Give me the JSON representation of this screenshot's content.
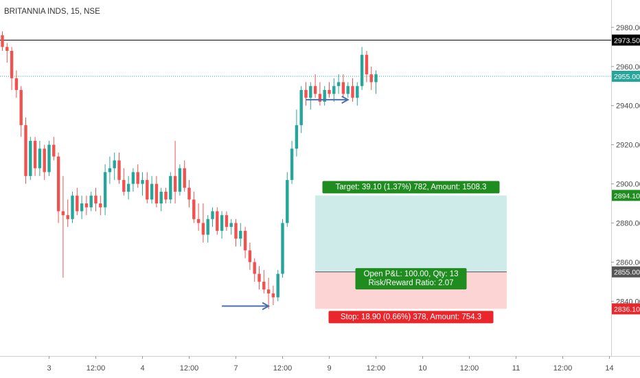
{
  "header": {
    "title": "BRITANNIA INDS, 15, NSE"
  },
  "chart_data": {
    "type": "candlestick",
    "symbol": "BRITANNIA INDS",
    "interval": "15",
    "exchange": "NSE",
    "ylim": [
      2812,
      2994
    ],
    "y_ticks": [
      2980,
      2960,
      2940,
      2920,
      2900,
      2880,
      2860,
      2840
    ],
    "y_tick_labels": [
      "2980.00",
      "2960.00",
      "2940.00",
      "2920.00",
      "2900.00",
      "2880.00",
      "2860.00",
      "2840.00"
    ],
    "x_ticks": [
      {
        "bar": 10,
        "label": "3"
      },
      {
        "bar": 20,
        "label": "12:00"
      },
      {
        "bar": 30,
        "label": "4"
      },
      {
        "bar": 40,
        "label": "12:00"
      },
      {
        "bar": 50,
        "label": "7"
      },
      {
        "bar": 60,
        "label": "12:00"
      },
      {
        "bar": 70,
        "label": "9"
      },
      {
        "bar": 80,
        "label": "12:00"
      },
      {
        "bar": 90,
        "label": "10"
      },
      {
        "bar": 100,
        "label": "12:00"
      },
      {
        "bar": 110,
        "label": "11"
      },
      {
        "bar": 120,
        "label": "12:00"
      },
      {
        "bar": 130,
        "label": "14"
      }
    ],
    "colors": {
      "up": "#26a69a",
      "down": "#ef5350",
      "line": "#4b6eaf"
    },
    "candles": [
      [
        2976,
        2978,
        2968,
        2970
      ],
      [
        2970,
        2972,
        2962,
        2968
      ],
      [
        2968,
        2970,
        2948,
        2954
      ],
      [
        2954,
        2958,
        2944,
        2948
      ],
      [
        2948,
        2950,
        2924,
        2930
      ],
      [
        2930,
        2934,
        2900,
        2904
      ],
      [
        2904,
        2924,
        2902,
        2922
      ],
      [
        2922,
        2924,
        2904,
        2908
      ],
      [
        2908,
        2922,
        2904,
        2918
      ],
      [
        2918,
        2920,
        2902,
        2906
      ],
      [
        2906,
        2922,
        2904,
        2920
      ],
      [
        2920,
        2924,
        2912,
        2914
      ],
      [
        2914,
        2916,
        2880,
        2886
      ],
      [
        2886,
        2904,
        2852,
        2884
      ],
      [
        2884,
        2892,
        2878,
        2882
      ],
      [
        2882,
        2896,
        2880,
        2894
      ],
      [
        2894,
        2898,
        2884,
        2886
      ],
      [
        2886,
        2894,
        2882,
        2890
      ],
      [
        2890,
        2894,
        2884,
        2888
      ],
      [
        2888,
        2896,
        2886,
        2894
      ],
      [
        2894,
        2898,
        2886,
        2890
      ],
      [
        2890,
        2894,
        2884,
        2888
      ],
      [
        2888,
        2910,
        2884,
        2906
      ],
      [
        2906,
        2914,
        2900,
        2908
      ],
      [
        2908,
        2916,
        2902,
        2912
      ],
      [
        2912,
        2916,
        2900,
        2902
      ],
      [
        2902,
        2908,
        2894,
        2896
      ],
      [
        2896,
        2904,
        2892,
        2900
      ],
      [
        2900,
        2908,
        2896,
        2906
      ],
      [
        2906,
        2910,
        2898,
        2900
      ],
      [
        2900,
        2906,
        2894,
        2902
      ],
      [
        2902,
        2906,
        2890,
        2892
      ],
      [
        2892,
        2904,
        2890,
        2900
      ],
      [
        2900,
        2904,
        2888,
        2890
      ],
      [
        2890,
        2898,
        2886,
        2896
      ],
      [
        2896,
        2898,
        2890,
        2892
      ],
      [
        2892,
        2906,
        2890,
        2904
      ],
      [
        2904,
        2922,
        2890,
        2896
      ],
      [
        2896,
        2910,
        2894,
        2908
      ],
      [
        2908,
        2912,
        2896,
        2898
      ],
      [
        2898,
        2902,
        2888,
        2892
      ],
      [
        2892,
        2896,
        2880,
        2882
      ],
      [
        2882,
        2890,
        2876,
        2880
      ],
      [
        2880,
        2890,
        2870,
        2874
      ],
      [
        2874,
        2884,
        2870,
        2882
      ],
      [
        2882,
        2888,
        2878,
        2886
      ],
      [
        2886,
        2888,
        2874,
        2876
      ],
      [
        2876,
        2886,
        2872,
        2884
      ],
      [
        2884,
        2886,
        2876,
        2878
      ],
      [
        2878,
        2882,
        2874,
        2880
      ],
      [
        2880,
        2882,
        2868,
        2872
      ],
      [
        2872,
        2880,
        2868,
        2876
      ],
      [
        2876,
        2878,
        2862,
        2866
      ],
      [
        2866,
        2870,
        2856,
        2860
      ],
      [
        2860,
        2862,
        2850,
        2854
      ],
      [
        2854,
        2858,
        2846,
        2850
      ],
      [
        2850,
        2856,
        2844,
        2846
      ],
      [
        2846,
        2852,
        2836,
        2844
      ],
      [
        2844,
        2848,
        2838,
        2842
      ],
      [
        2842,
        2856,
        2840,
        2854
      ],
      [
        2854,
        2882,
        2852,
        2880
      ],
      [
        2880,
        2906,
        2878,
        2902
      ],
      [
        2902,
        2922,
        2900,
        2918
      ],
      [
        2918,
        2938,
        2914,
        2930
      ],
      [
        2930,
        2950,
        2926,
        2948
      ],
      [
        2948,
        2952,
        2940,
        2944
      ],
      [
        2944,
        2952,
        2938,
        2950
      ],
      [
        2950,
        2956,
        2944,
        2946
      ],
      [
        2946,
        2952,
        2940,
        2942
      ],
      [
        2942,
        2950,
        2940,
        2948
      ],
      [
        2948,
        2952,
        2944,
        2946
      ],
      [
        2946,
        2954,
        2942,
        2950
      ],
      [
        2950,
        2956,
        2946,
        2952
      ],
      [
        2952,
        2956,
        2944,
        2946
      ],
      [
        2946,
        2952,
        2944,
        2950
      ],
      [
        2950,
        2954,
        2942,
        2944
      ],
      [
        2944,
        2952,
        2940,
        2950
      ],
      [
        2950,
        2970,
        2948,
        2966
      ],
      [
        2966,
        2968,
        2952,
        2956
      ],
      [
        2956,
        2960,
        2948,
        2952
      ],
      [
        2952,
        2958,
        2946,
        2956
      ]
    ],
    "horizontal_lines": [
      {
        "price": 2973.5,
        "label": "2973.50",
        "color": "#000000",
        "style": "solid"
      },
      {
        "price": 2955.0,
        "label": "2955.00",
        "color": "#26a69a",
        "style": "dotted"
      }
    ],
    "annotations": {
      "arrow_top": {
        "price": 2943,
        "from_bar": 65,
        "to_bar": 74
      },
      "arrow_bottom": {
        "price": 2837.5,
        "from_bar": 47,
        "to_bar": 57
      }
    },
    "long_position": {
      "from_bar": 67,
      "to_bar": 108,
      "entry": 2855.0,
      "target": 2894.1,
      "stop": 2836.1,
      "entry_label": "2855.00",
      "target_label": "2894.10",
      "stop_label": "2836.10",
      "target_text": "Target: 39.10 (1.37%) 782, Amount: 1508.3",
      "stop_text": "Stop: 18.90 (0.66%) 378, Amount: 754.3",
      "pnl_text": "Open P&L: 100.00, Qty: 13",
      "ratio_text": "Risk/Reward Ratio: 2.07"
    }
  }
}
